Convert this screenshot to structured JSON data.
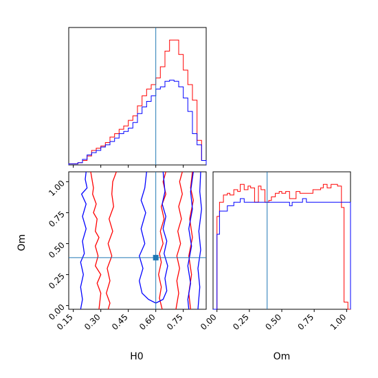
{
  "chart_data": {
    "type": "corner",
    "truth": {
      "H0": 0.6,
      "Om": 0.387
    },
    "truth_color": "#1f77b4",
    "series": [
      {
        "color": "#ff0000"
      },
      {
        "color": "#0000ff"
      }
    ],
    "axes": [
      {
        "name": "H0-histogram",
        "type": "histogram",
        "xlim": [
          0.125,
          0.875
        ],
        "bin_edges": [
          0.125,
          0.15,
          0.175,
          0.2,
          0.225,
          0.25,
          0.275,
          0.3,
          0.325,
          0.35,
          0.375,
          0.4,
          0.425,
          0.45,
          0.475,
          0.5,
          0.525,
          0.55,
          0.575,
          0.6,
          0.625,
          0.65,
          0.675,
          0.7,
          0.725,
          0.75,
          0.775,
          0.8,
          0.825,
          0.85,
          0.875
        ],
        "counts": [
          [
            1,
            1,
            2,
            4,
            8,
            13,
            15,
            17,
            20,
            25,
            28,
            32,
            35,
            40,
            44,
            53,
            62,
            68,
            72,
            78,
            88,
            102,
            112,
            112,
            99,
            85,
            72,
            58,
            22,
            4
          ],
          [
            1,
            1,
            2,
            5,
            9,
            11,
            13,
            16,
            18,
            21,
            24,
            28,
            30,
            33,
            38,
            46,
            52,
            57,
            62,
            68,
            70,
            75,
            76,
            75,
            70,
            60,
            48,
            28,
            18,
            4
          ]
        ]
      },
      {
        "name": "Om-histogram",
        "type": "histogram",
        "xlim": [
          -0.03,
          1.03
        ],
        "x_ticks": [
          "0.00",
          "0.25",
          "0.50",
          "0.75",
          "1.00"
        ],
        "x_tick_values": [
          0,
          0.25,
          0.5,
          0.75,
          1.0
        ],
        "xlabel": "Om",
        "bin_edges": [
          -0.03,
          0,
          0.02,
          0.05,
          0.08,
          0.1,
          0.13,
          0.16,
          0.18,
          0.21,
          0.24,
          0.26,
          0.29,
          0.32,
          0.34,
          0.37,
          0.4,
          0.42,
          0.45,
          0.48,
          0.5,
          0.53,
          0.56,
          0.58,
          0.61,
          0.64,
          0.66,
          0.69,
          0.72,
          0.74,
          0.77,
          0.8,
          0.82,
          0.85,
          0.88,
          0.9,
          0.93,
          0.96,
          0.98,
          1.01,
          1.03
        ],
        "counts": [
          [
            0,
            52,
            60,
            64,
            65,
            64,
            67,
            66,
            70,
            67,
            69,
            68,
            60,
            69,
            67,
            60,
            61,
            63,
            65,
            66,
            65,
            66,
            62,
            62,
            66,
            65,
            65,
            65,
            65,
            67,
            67,
            68,
            70,
            68,
            70,
            70,
            69,
            57,
            4,
            0
          ],
          [
            0,
            42,
            55,
            55,
            58,
            58,
            60,
            60,
            62,
            60,
            60,
            60,
            60,
            60,
            60,
            60,
            60,
            60,
            60,
            60,
            60,
            60,
            58,
            60,
            60,
            60,
            62,
            60,
            60,
            60,
            60,
            60,
            60,
            60,
            60,
            60,
            60,
            60,
            60,
            60
          ]
        ]
      },
      {
        "name": "H0-Om-contour",
        "type": "contour",
        "xlim": [
          0.125,
          0.875
        ],
        "ylim": [
          -0.03,
          1.08
        ],
        "x_ticks": [
          "0.15",
          "0.30",
          "0.45",
          "0.60",
          "0.75"
        ],
        "x_tick_values": [
          0.15,
          0.3,
          0.45,
          0.6,
          0.75
        ],
        "y_ticks": [
          "0.00",
          "0.25",
          "0.50",
          "0.75",
          "1.00"
        ],
        "y_tick_values": [
          0,
          0.25,
          0.5,
          0.75,
          1.0
        ],
        "xlabel": "H0",
        "ylabel": "Om",
        "contours": [
          [
            [
              [
                0.245,
                1.08
              ],
              [
                0.26,
                0.95
              ],
              [
                0.255,
                0.9
              ],
              [
                0.275,
                0.82
              ],
              [
                0.26,
                0.75
              ],
              [
                0.28,
                0.7
              ],
              [
                0.27,
                0.6
              ],
              [
                0.29,
                0.55
              ],
              [
                0.27,
                0.48
              ],
              [
                0.285,
                0.4
              ],
              [
                0.27,
                0.32
              ],
              [
                0.3,
                0.25
              ],
              [
                0.28,
                0.18
              ],
              [
                0.3,
                0.1
              ],
              [
                0.29,
                -0.03
              ]
            ],
            [
              [
                0.385,
                1.08
              ],
              [
                0.365,
                1.0
              ],
              [
                0.36,
                0.9
              ],
              [
                0.37,
                0.8
              ],
              [
                0.345,
                0.7
              ],
              [
                0.365,
                0.6
              ],
              [
                0.34,
                0.5
              ],
              [
                0.36,
                0.4
              ],
              [
                0.335,
                0.3
              ],
              [
                0.35,
                0.2
              ],
              [
                0.33,
                0.1
              ],
              [
                0.35,
                0.02
              ],
              [
                0.34,
                -0.03
              ]
            ],
            [
              [
                0.655,
                1.08
              ],
              [
                0.64,
                1.0
              ],
              [
                0.655,
                0.9
              ],
              [
                0.63,
                0.8
              ],
              [
                0.645,
                0.7
              ],
              [
                0.625,
                0.6
              ],
              [
                0.64,
                0.5
              ],
              [
                0.62,
                0.42
              ],
              [
                0.63,
                0.35
              ],
              [
                0.615,
                0.25
              ],
              [
                0.63,
                0.15
              ],
              [
                0.62,
                0.06
              ],
              [
                0.635,
                -0.03
              ]
            ],
            [
              [
                0.745,
                1.08
              ],
              [
                0.73,
                1.0
              ],
              [
                0.745,
                0.9
              ],
              [
                0.725,
                0.8
              ],
              [
                0.74,
                0.7
              ],
              [
                0.72,
                0.6
              ],
              [
                0.735,
                0.5
              ],
              [
                0.715,
                0.4
              ],
              [
                0.73,
                0.3
              ],
              [
                0.715,
                0.2
              ],
              [
                0.725,
                0.1
              ],
              [
                0.71,
                -0.03
              ]
            ],
            [
              [
                0.8,
                1.08
              ],
              [
                0.79,
                0.95
              ],
              [
                0.805,
                0.85
              ],
              [
                0.785,
                0.7
              ],
              [
                0.8,
                0.55
              ],
              [
                0.78,
                0.4
              ],
              [
                0.795,
                0.25
              ],
              [
                0.78,
                0.1
              ],
              [
                0.79,
                -0.03
              ]
            ]
          ],
          [
            [
              [
                0.22,
                1.08
              ],
              [
                0.215,
                1.02
              ],
              [
                0.225,
                0.95
              ],
              [
                0.195,
                0.9
              ],
              [
                0.22,
                0.82
              ],
              [
                0.2,
                0.72
              ],
              [
                0.22,
                0.62
              ],
              [
                0.2,
                0.52
              ],
              [
                0.21,
                0.42
              ],
              [
                0.19,
                0.35
              ],
              [
                0.205,
                0.25
              ],
              [
                0.19,
                0.15
              ],
              [
                0.2,
                0.05
              ],
              [
                0.19,
                -0.03
              ]
            ],
            [
              [
                0.55,
                1.08
              ],
              [
                0.54,
                0.95
              ],
              [
                0.52,
                0.85
              ],
              [
                0.545,
                0.75
              ],
              [
                0.52,
                0.62
              ],
              [
                0.54,
                0.5
              ],
              [
                0.51,
                0.4
              ],
              [
                0.53,
                0.3
              ],
              [
                0.51,
                0.2
              ],
              [
                0.525,
                0.1
              ],
              [
                0.56,
                0.05
              ],
              [
                0.6,
                0.02
              ],
              [
                0.64,
                0.05
              ],
              [
                0.66,
                0.12
              ],
              [
                0.65,
                0.22
              ],
              [
                0.665,
                0.32
              ],
              [
                0.645,
                0.42
              ],
              [
                0.66,
                0.52
              ],
              [
                0.64,
                0.62
              ],
              [
                0.655,
                0.72
              ],
              [
                0.635,
                0.82
              ],
              [
                0.65,
                0.92
              ],
              [
                0.64,
                1.08
              ]
            ],
            [
              [
                0.805,
                1.08
              ],
              [
                0.79,
                0.92
              ],
              [
                0.8,
                0.78
              ],
              [
                0.78,
                0.62
              ],
              [
                0.795,
                0.48
              ],
              [
                0.775,
                0.32
              ],
              [
                0.79,
                0.18
              ],
              [
                0.775,
                0.05
              ],
              [
                0.78,
                -0.03
              ]
            ],
            [
              [
                0.845,
                1.08
              ],
              [
                0.84,
                0.92
              ],
              [
                0.85,
                0.78
              ],
              [
                0.835,
                0.6
              ],
              [
                0.845,
                0.45
              ],
              [
                0.83,
                0.3
              ],
              [
                0.84,
                0.15
              ],
              [
                0.83,
                -0.03
              ]
            ]
          ]
        ]
      }
    ]
  }
}
